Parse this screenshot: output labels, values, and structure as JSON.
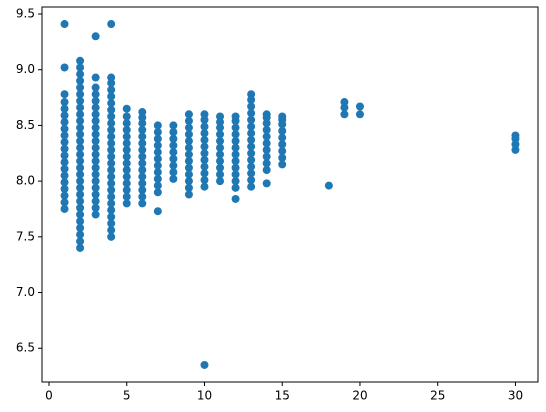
{
  "chart_data": {
    "type": "scatter",
    "color": "#1f77b4",
    "x": [
      1,
      1,
      1,
      1,
      1,
      1,
      1,
      1,
      1,
      1,
      1,
      1,
      1,
      1,
      1,
      1,
      1,
      1,
      1,
      1,
      2,
      2,
      2,
      2,
      2,
      2,
      2,
      2,
      2,
      2,
      2,
      2,
      2,
      2,
      2,
      2,
      2,
      2,
      2,
      2,
      2,
      2,
      2,
      2,
      2,
      2,
      2,
      2,
      2,
      3,
      3,
      3,
      3,
      3,
      3,
      3,
      3,
      3,
      3,
      3,
      3,
      3,
      3,
      3,
      3,
      3,
      3,
      3,
      3,
      3,
      3,
      4,
      4,
      4,
      4,
      4,
      4,
      4,
      4,
      4,
      4,
      4,
      4,
      4,
      4,
      4,
      4,
      4,
      4,
      4,
      4,
      4,
      4,
      4,
      4,
      4,
      4,
      5,
      5,
      5,
      5,
      5,
      5,
      5,
      5,
      5,
      5,
      5,
      5,
      5,
      5,
      5,
      6,
      6,
      6,
      6,
      6,
      6,
      6,
      6,
      6,
      6,
      6,
      6,
      6,
      6,
      6,
      7,
      7,
      7,
      7,
      7,
      7,
      7,
      7,
      7,
      7,
      7,
      7,
      8,
      8,
      8,
      8,
      8,
      8,
      8,
      8,
      8,
      9,
      9,
      9,
      9,
      9,
      9,
      9,
      9,
      9,
      9,
      9,
      9,
      9,
      10,
      10,
      10,
      10,
      10,
      10,
      10,
      10,
      10,
      10,
      10,
      10,
      10,
      11,
      11,
      11,
      11,
      11,
      11,
      11,
      11,
      11,
      11,
      11,
      12,
      12,
      12,
      12,
      12,
      12,
      12,
      12,
      12,
      12,
      12,
      12,
      12,
      13,
      13,
      13,
      13,
      13,
      13,
      13,
      13,
      13,
      13,
      13,
      13,
      13,
      13,
      13,
      14,
      14,
      14,
      14,
      14,
      14,
      14,
      14,
      14,
      14,
      14,
      15,
      15,
      15,
      15,
      15,
      15,
      15,
      15,
      15,
      18,
      19,
      19,
      19,
      20,
      20,
      30,
      30,
      30,
      30
    ],
    "y": [
      7.75,
      7.81,
      7.87,
      7.93,
      7.99,
      8.05,
      8.11,
      8.17,
      8.23,
      8.29,
      8.35,
      8.41,
      8.47,
      8.53,
      8.59,
      8.65,
      8.71,
      8.78,
      9.02,
      9.41,
      7.4,
      7.46,
      7.52,
      7.58,
      7.64,
      7.7,
      7.76,
      7.82,
      7.88,
      7.94,
      8.0,
      8.06,
      8.12,
      8.18,
      8.24,
      8.3,
      8.36,
      8.42,
      8.48,
      8.54,
      8.6,
      8.66,
      8.72,
      8.78,
      8.84,
      8.9,
      8.96,
      9.02,
      9.08,
      7.7,
      7.76,
      7.82,
      7.88,
      7.94,
      8.0,
      8.06,
      8.12,
      8.18,
      8.24,
      8.3,
      8.36,
      8.42,
      8.48,
      8.54,
      8.6,
      8.66,
      8.72,
      8.78,
      8.84,
      8.93,
      9.3,
      7.5,
      7.56,
      7.62,
      7.68,
      7.74,
      7.8,
      7.86,
      7.92,
      7.98,
      8.04,
      8.1,
      8.16,
      8.22,
      8.28,
      8.34,
      8.4,
      8.46,
      8.52,
      8.58,
      8.64,
      8.7,
      8.76,
      8.82,
      8.88,
      8.93,
      9.41,
      7.8,
      7.86,
      7.92,
      7.98,
      8.04,
      8.1,
      8.16,
      8.22,
      8.28,
      8.34,
      8.4,
      8.46,
      8.52,
      8.58,
      8.65,
      7.8,
      7.86,
      7.92,
      7.98,
      8.04,
      8.1,
      8.16,
      8.22,
      8.28,
      8.34,
      8.4,
      8.46,
      8.52,
      8.57,
      8.62,
      7.73,
      7.9,
      7.96,
      8.02,
      8.08,
      8.14,
      8.2,
      8.26,
      8.32,
      8.38,
      8.44,
      8.5,
      8.02,
      8.08,
      8.14,
      8.2,
      8.26,
      8.32,
      8.38,
      8.44,
      8.5,
      7.88,
      7.94,
      8.0,
      8.06,
      8.12,
      8.18,
      8.24,
      8.3,
      8.36,
      8.42,
      8.48,
      8.54,
      8.6,
      6.35,
      7.95,
      8.01,
      8.07,
      8.13,
      8.19,
      8.25,
      8.31,
      8.37,
      8.43,
      8.49,
      8.55,
      8.6,
      8.0,
      8.06,
      8.12,
      8.18,
      8.24,
      8.3,
      8.36,
      8.42,
      8.48,
      8.53,
      8.58,
      7.84,
      7.94,
      8.0,
      8.06,
      8.12,
      8.18,
      8.24,
      8.3,
      8.36,
      8.42,
      8.48,
      8.54,
      8.58,
      7.95,
      8.01,
      8.07,
      8.13,
      8.19,
      8.25,
      8.31,
      8.37,
      8.43,
      8.49,
      8.55,
      8.61,
      8.67,
      8.73,
      8.78,
      7.98,
      8.1,
      8.16,
      8.22,
      8.28,
      8.34,
      8.4,
      8.46,
      8.52,
      8.57,
      8.6,
      8.15,
      8.21,
      8.27,
      8.33,
      8.39,
      8.45,
      8.51,
      8.55,
      8.58,
      7.96,
      8.6,
      8.66,
      8.71,
      8.6,
      8.67,
      8.28,
      8.33,
      8.38,
      8.41
    ],
    "xlim": [
      -0.45,
      31.45
    ],
    "ylim": [
      6.197,
      9.563
    ],
    "xticks": [
      0,
      5,
      10,
      15,
      20,
      25,
      30
    ],
    "yticks": [
      6.5,
      {
        "value": 7,
        "label": "7.0"
      },
      7.5,
      {
        "value": 8,
        "label": "8.0"
      },
      8.5,
      {
        "value": 9,
        "label": "9.0"
      },
      9.5
    ],
    "grid": false
  }
}
